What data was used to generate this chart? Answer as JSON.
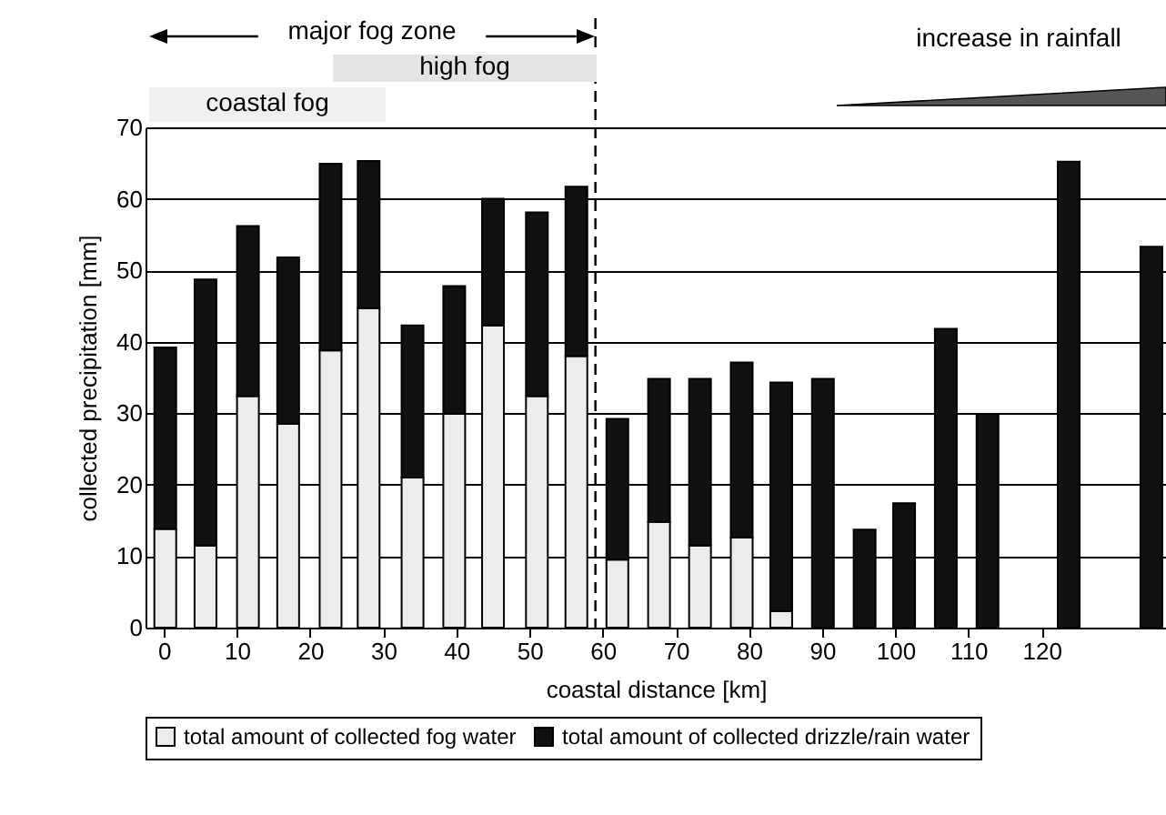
{
  "chart_data": {
    "type": "bar",
    "stacked": true,
    "xlabel": "coastal distance [km]",
    "ylabel": "collected precipitation [mm]",
    "x": [
      0.2,
      5.7,
      11.5,
      17,
      22.8,
      28,
      34,
      39.7,
      45,
      51,
      56.4,
      62,
      67.7,
      73.3,
      79,
      84.4,
      90.1,
      95.8,
      101.2,
      106.9,
      112.6,
      123.7,
      135
    ],
    "series": [
      {
        "name": "total amount of collected fog water",
        "color": "#ececec",
        "values": [
          13.8,
          11.5,
          32.4,
          28.5,
          38.8,
          44.7,
          21,
          29.9,
          42.3,
          32.4,
          38,
          9.5,
          14.8,
          11.5,
          12.6,
          2.3,
          0,
          0,
          0,
          0,
          0,
          0,
          0
        ]
      },
      {
        "name": "total amount of collected drizzle/rain water",
        "color": "#111111",
        "values": [
          25.4,
          37.2,
          23.8,
          23.3,
          26.1,
          20.6,
          21.3,
          17.9,
          17.7,
          25.7,
          23.7,
          19.7,
          20,
          23.3,
          24.5,
          32,
          34.8,
          13.7,
          17.4,
          41.8,
          29.9,
          65.2,
          53.3
        ]
      }
    ],
    "xlim": [
      -2.5,
      137
    ],
    "xticks": [
      0,
      10,
      20,
      30,
      40,
      50,
      60,
      70,
      80,
      90,
      100,
      110,
      120
    ],
    "ylim": [
      0,
      70
    ],
    "yticks": [
      0,
      10,
      20,
      30,
      40,
      50,
      60,
      70
    ],
    "grid": "y",
    "legend": "bottom",
    "ref_lines": [
      {
        "axis": "x",
        "value": 59,
        "line_style": "dashed"
      }
    ],
    "annotations": [
      "major fog zone",
      "high fog",
      "coastal fog",
      "increase in rainfall"
    ]
  }
}
